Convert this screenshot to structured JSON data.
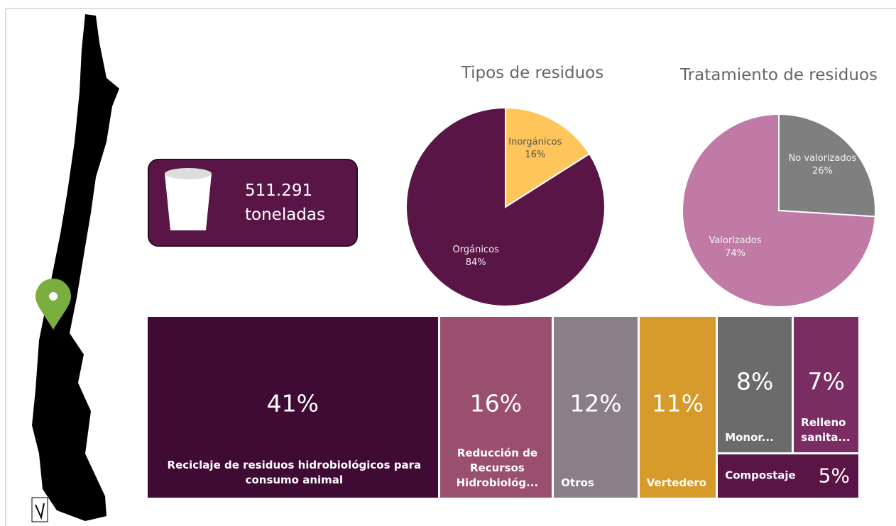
{
  "kpi": {
    "value": "511.291",
    "unit": "toneladas"
  },
  "chart_data": [
    {
      "type": "pie",
      "title": "Tipos de residuos",
      "categories": [
        "Inorgánicos",
        "Orgánicos"
      ],
      "values": [
        16,
        84
      ],
      "value_labels": [
        "16%",
        "84%"
      ],
      "colors": [
        "#fec65a",
        "#5a1547"
      ]
    },
    {
      "type": "pie",
      "title": "Tratamiento de residuos",
      "categories": [
        "No valorizados",
        "Valorizados"
      ],
      "values": [
        26,
        74
      ],
      "value_labels": [
        "26%",
        "74%"
      ],
      "colors": [
        "#7f7f7f",
        "#c07aa5"
      ]
    },
    {
      "type": "treemap",
      "categories": [
        "Reciclaje de residuos hidrobiológicos para consumo animal",
        "Reducción de Recursos Hidrobiológ...",
        "Otros",
        "Vertedero",
        "Monor...",
        "Relleno sanita...",
        "Compostaje"
      ],
      "values": [
        41,
        16,
        12,
        11,
        8,
        7,
        5
      ],
      "value_labels": [
        "41%",
        "16%",
        "12%",
        "11%",
        "8%",
        "7%",
        "5%"
      ],
      "colors": [
        "#3f0a33",
        "#9b4f6e",
        "#8a7f87",
        "#d69a2a",
        "#6b6b6b",
        "#7a2d63",
        "#5a1547"
      ]
    }
  ]
}
